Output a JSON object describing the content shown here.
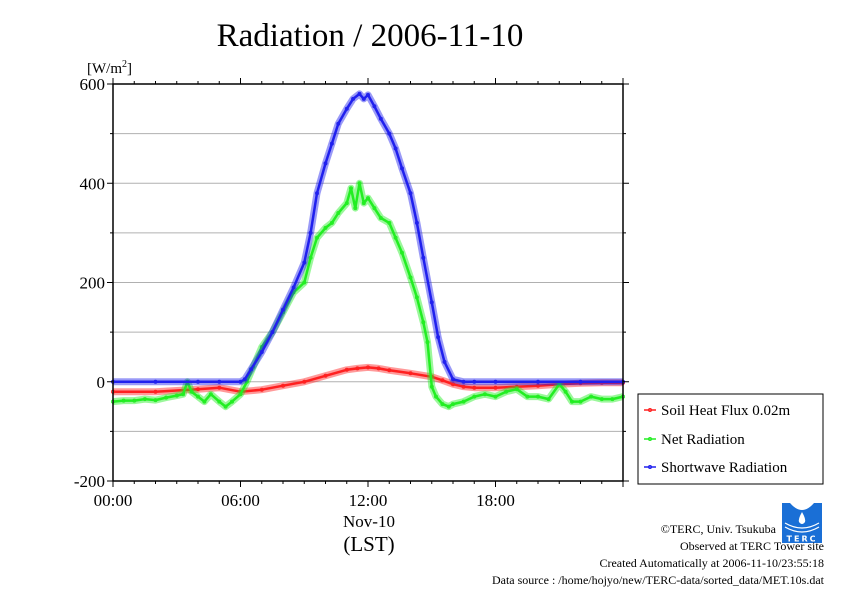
{
  "chart_data": {
    "type": "line",
    "title": "Radiation / 2006-11-10",
    "ylabel": "[W/m²]",
    "ylabel_parts": {
      "base": "[W/m",
      "sup": "2",
      "close": "]"
    },
    "xlabel_lines": [
      "Nov-10",
      "(LST)"
    ],
    "xlim": [
      0,
      24
    ],
    "ylim": [
      -200,
      600
    ],
    "x_unit": "hour",
    "x_ticks": [
      {
        "value": 0,
        "label": "00:00"
      },
      {
        "value": 6,
        "label": "06:00"
      },
      {
        "value": 12,
        "label": "12:00"
      },
      {
        "value": 18,
        "label": "18:00"
      }
    ],
    "y_ticks": [
      {
        "value": 600,
        "label": "600"
      },
      {
        "value": 400,
        "label": "400"
      },
      {
        "value": 200,
        "label": "200"
      },
      {
        "value": 0,
        "label": "0"
      },
      {
        "value": -200,
        "label": "-200"
      }
    ],
    "y_gridlines": [
      500,
      400,
      300,
      200,
      100,
      0,
      -100
    ],
    "grid": true,
    "legend_position": "right",
    "series": [
      {
        "name": "Soil Heat Flux 0.02m",
        "color": "#ff2020",
        "x": [
          0,
          2,
          4,
          5,
          6,
          7,
          8,
          9,
          10,
          11,
          11.5,
          12,
          12.5,
          13,
          14,
          15,
          15.5,
          16,
          16.5,
          17,
          18,
          19,
          20,
          21,
          22,
          23,
          24
        ],
        "values": [
          -20,
          -20,
          -15,
          -12,
          -20,
          -16,
          -8,
          0,
          12,
          24,
          27,
          29,
          27,
          23,
          17,
          10,
          3,
          -5,
          -10,
          -12,
          -12,
          -10,
          -8,
          -5,
          -3,
          -2,
          -2
        ]
      },
      {
        "name": "Net Radiation",
        "color": "#22ee22",
        "x": [
          0,
          0.5,
          1,
          1.5,
          2,
          2.5,
          3,
          3.3,
          3.5,
          3.7,
          4,
          4.3,
          4.6,
          5,
          5.3,
          5.6,
          6,
          6.3,
          6.6,
          7,
          7.5,
          8,
          8.5,
          9,
          9.3,
          9.6,
          10,
          10.3,
          10.6,
          11,
          11.2,
          11.4,
          11.6,
          11.8,
          12,
          12.3,
          12.6,
          13,
          13.3,
          13.6,
          14,
          14.3,
          14.6,
          14.8,
          15,
          15.2,
          15.5,
          15.8,
          16,
          16.5,
          17,
          17.5,
          18,
          18.5,
          19,
          19.5,
          20,
          20.5,
          21,
          21.3,
          21.6,
          22,
          22.5,
          23,
          23.5,
          24
        ],
        "values": [
          -40,
          -38,
          -38,
          -35,
          -37,
          -32,
          -28,
          -25,
          0,
          -20,
          -30,
          -40,
          -25,
          -40,
          -50,
          -40,
          -25,
          0,
          30,
          70,
          100,
          140,
          180,
          200,
          250,
          290,
          310,
          320,
          340,
          360,
          390,
          350,
          400,
          360,
          370,
          350,
          330,
          320,
          290,
          260,
          210,
          170,
          120,
          80,
          -10,
          -30,
          -45,
          -50,
          -45,
          -40,
          -30,
          -25,
          -30,
          -20,
          -15,
          -30,
          -30,
          -35,
          -5,
          -20,
          -40,
          -40,
          -30,
          -35,
          -35,
          -30
        ]
      },
      {
        "name": "Shortwave Radiation",
        "color": "#2020ee",
        "x": [
          0,
          2,
          4,
          5,
          6,
          6.2,
          6.5,
          7,
          7.5,
          8,
          8.5,
          9,
          9.3,
          9.6,
          10,
          10.3,
          10.6,
          11,
          11.3,
          11.6,
          11.8,
          12,
          12.3,
          12.6,
          13,
          13.3,
          13.6,
          14,
          14.3,
          14.6,
          15,
          15.3,
          15.6,
          16,
          16.5,
          17,
          18,
          20,
          22,
          24
        ],
        "values": [
          0,
          0,
          0,
          0,
          0,
          5,
          25,
          60,
          100,
          145,
          190,
          240,
          300,
          380,
          440,
          480,
          520,
          550,
          570,
          580,
          570,
          578,
          555,
          530,
          500,
          470,
          430,
          380,
          320,
          250,
          160,
          90,
          40,
          5,
          0,
          0,
          0,
          0,
          0,
          0
        ]
      }
    ]
  },
  "footer": {
    "copyright": "©TERC, Univ. Tsukuba",
    "observed": "Observed at TERC Tower site",
    "created": "Created Automatically at 2006-11-10/23:55:18",
    "source": "Data source : /home/hojyo/new/TERC-data/sorted_data/MET.10s.dat",
    "logo_text": "TERC"
  }
}
